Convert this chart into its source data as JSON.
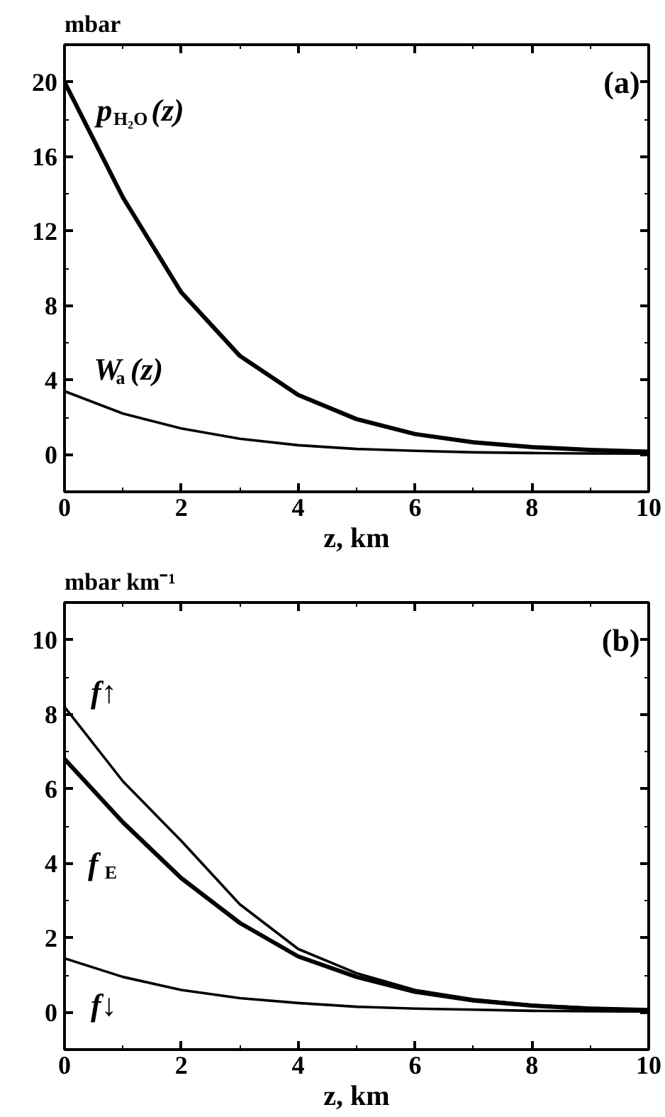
{
  "chart_data": [
    {
      "type": "line",
      "ylabel": "mbar",
      "xlabel": "z, km",
      "annotations": [
        "(a)"
      ],
      "x": [
        0,
        1,
        2,
        3,
        4,
        5,
        6,
        7,
        8,
        9,
        10
      ],
      "xlim": [
        0,
        10
      ],
      "xticks": [
        0,
        2,
        4,
        6,
        8,
        10
      ],
      "ylim": [
        -2,
        22
      ],
      "yticks": [
        0,
        4,
        8,
        12,
        16,
        20
      ],
      "grid": false,
      "legend": "left",
      "series": [
        {
          "name": "p$_{H₂O}$(z)",
          "color": "#000000",
          "values": [
            20,
            13.8,
            8.7,
            5.3,
            3.2,
            1.9,
            1.1,
            0.66,
            0.4,
            0.25,
            0.15
          ]
        },
        {
          "name": "W$_{a}$(z)",
          "color": "#000000",
          "values": [
            3.4,
            2.2,
            1.4,
            0.85,
            0.5,
            0.3,
            0.2,
            0.12,
            0.08,
            0.06,
            0.05
          ]
        }
      ]
    },
    {
      "type": "line",
      "ylabel": "mbar km⁻¹",
      "xlabel": "z, km",
      "annotations": [
        "(b)"
      ],
      "x": [
        0,
        1,
        2,
        3,
        4,
        5,
        6,
        7,
        8,
        9,
        10
      ],
      "xlim": [
        0,
        10
      ],
      "xticks": [
        0,
        2,
        4,
        6,
        8,
        10
      ],
      "ylim": [
        -1,
        11
      ],
      "yticks": [
        0,
        2,
        4,
        6,
        8,
        10
      ],
      "grid": false,
      "legend": "left",
      "series": [
        {
          "name": "f↑",
          "color": "#000000",
          "values": [
            8.2,
            6.2,
            4.6,
            2.9,
            1.7,
            1.05,
            0.6,
            0.35,
            0.2,
            0.12,
            0.07
          ]
        },
        {
          "name": "f$_{E}$",
          "color": "#000000",
          "values": [
            6.8,
            5.1,
            3.6,
            2.4,
            1.5,
            0.95,
            0.55,
            0.32,
            0.18,
            0.1,
            0.06
          ]
        },
        {
          "name": "f↓",
          "color": "#000000",
          "values": [
            1.45,
            0.95,
            0.6,
            0.38,
            0.25,
            0.15,
            0.1,
            0.07,
            0.04,
            0.03,
            0.02
          ]
        }
      ]
    }
  ]
}
